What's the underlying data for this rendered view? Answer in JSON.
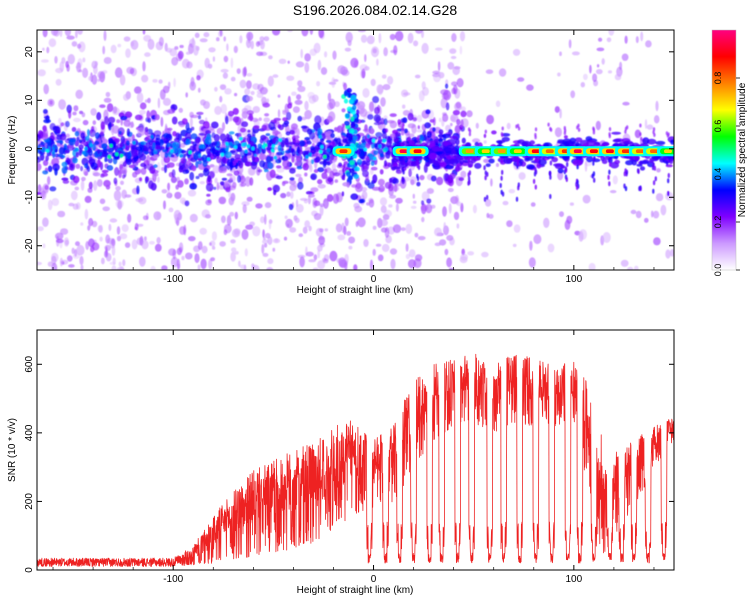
{
  "figure_title": "S196.2026.084.02.14.G28",
  "chart_data": [
    {
      "type": "heatmap",
      "title": "S196.2026.084.02.14.G28",
      "xlabel": "Height of straight line (km)",
      "ylabel": "Frequency (Hz)",
      "xlim": [
        -168,
        150
      ],
      "ylim": [
        -25,
        24.5
      ],
      "x_ticks": [
        -100,
        0,
        100
      ],
      "y_ticks": [
        -20,
        -10,
        0,
        10,
        20
      ],
      "colorbar": {
        "label": "Normalized spectral amplitude",
        "range": [
          0,
          1
        ],
        "ticks": [
          "0.0",
          "0.2",
          "0.4",
          "0.6",
          "0.8"
        ],
        "colormap": [
          "#ffffff",
          "#cc99ff",
          "#7f00ff",
          "#0000ff",
          "#00ffff",
          "#00ff00",
          "#ffff00",
          "#ff8000",
          "#ff0000",
          "#ff0080"
        ]
      },
      "description_points": {
        "bright_streak_centers_x": [
          -15,
          15,
          22,
          48,
          56,
          64,
          72,
          81,
          88,
          96,
          102,
          110,
          118,
          126,
          133,
          140,
          147
        ],
        "bright_streak_peak_amplitude": [
          0.85,
          0.95,
          0.9,
          0.75,
          0.7,
          0.75,
          0.7,
          0.9,
          0.8,
          0.85,
          0.95,
          0.9,
          0.9,
          0.85,
          0.8,
          0.8,
          0.7
        ]
      }
    },
    {
      "type": "line",
      "xlabel": "Height of straight line (km)",
      "ylabel": "SNR (10 * v/v)",
      "xlim": [
        -168,
        150
      ],
      "ylim": [
        0,
        700
      ],
      "x_ticks": [
        -100,
        0,
        100
      ],
      "y_ticks": [
        0,
        200,
        400,
        600
      ],
      "line_color": "#ee2222",
      "envelope": {
        "x": [
          -168,
          -100,
          -90,
          -80,
          -70,
          -60,
          -50,
          -40,
          -30,
          -20,
          -10,
          0,
          10,
          20,
          30,
          40,
          50,
          60,
          70,
          80,
          90,
          100,
          105,
          110,
          115,
          120,
          130,
          140,
          150
        ],
        "upper": [
          35,
          35,
          70,
          160,
          230,
          290,
          320,
          350,
          370,
          420,
          440,
          380,
          420,
          560,
          600,
          620,
          640,
          600,
          640,
          620,
          600,
          610,
          580,
          450,
          380,
          340,
          380,
          420,
          450
        ],
        "lower": [
          10,
          10,
          15,
          20,
          30,
          40,
          50,
          60,
          80,
          120,
          160,
          180,
          200,
          280,
          380,
          420,
          430,
          400,
          430,
          420,
          420,
          430,
          300,
          120,
          40,
          100,
          180,
          300,
          380
        ]
      },
      "dropout_x": [
        -2,
        6,
        13,
        20,
        28,
        34,
        42,
        49,
        58,
        65,
        73,
        81,
        89,
        97,
        103,
        110,
        118,
        124,
        130,
        137,
        145
      ]
    }
  ]
}
